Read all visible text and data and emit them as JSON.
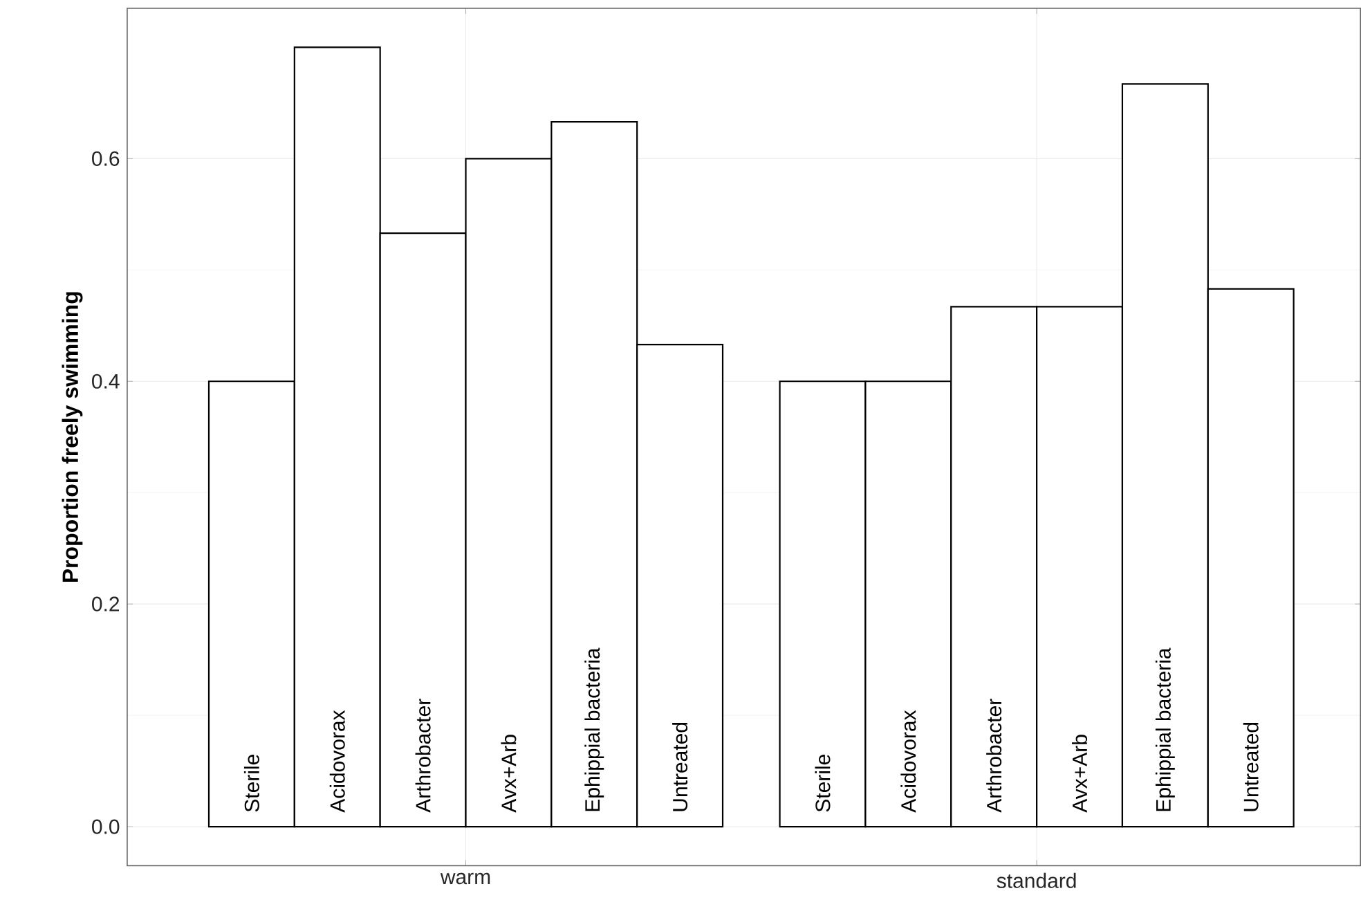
{
  "chart_data": {
    "type": "bar",
    "ylabel": "Proportion freely swimming",
    "categories": [
      "warm",
      "standard"
    ],
    "series": [
      {
        "name": "Sterile",
        "color": "#ffffff",
        "values": [
          0.4,
          0.4
        ]
      },
      {
        "name": "Acidovorax",
        "color": "#ffffff",
        "values": [
          0.7,
          0.4
        ]
      },
      {
        "name": "Arthrobacter",
        "color": "#ffffff",
        "values": [
          0.533,
          0.467
        ]
      },
      {
        "name": "Avx+Arb",
        "color": "#ffffff",
        "values": [
          0.6,
          0.467
        ]
      },
      {
        "name": "Ephippial bacteria",
        "color": "#ffffff",
        "values": [
          0.633,
          0.667
        ]
      },
      {
        "name": "Untreated",
        "color": "#ffffff",
        "values": [
          0.433,
          0.483
        ]
      }
    ],
    "ylim": [
      -0.035,
      0.735
    ],
    "yticks": [
      {
        "value": 0,
        "label": "0.0"
      },
      {
        "value": 0.2,
        "label": "0.2"
      },
      {
        "value": 0.4,
        "label": "0.4"
      },
      {
        "value": 0.6,
        "label": "0.6"
      }
    ],
    "grid": true
  }
}
